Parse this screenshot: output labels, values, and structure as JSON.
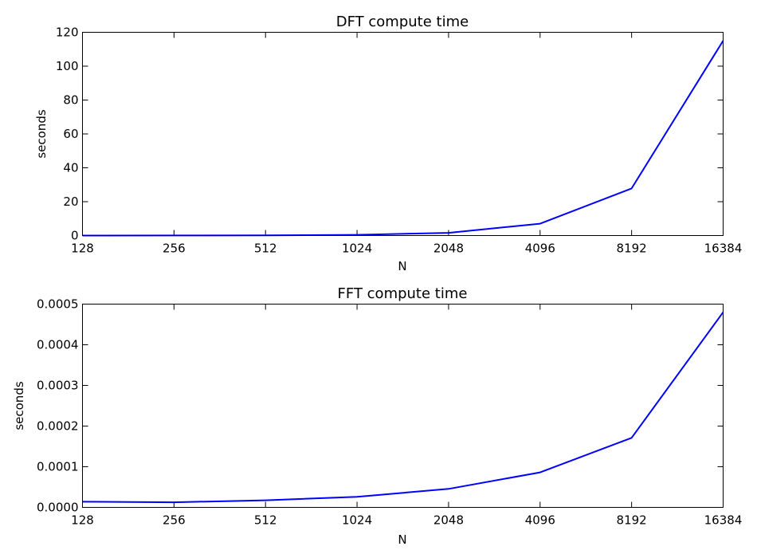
{
  "colors": {
    "series": "#0000ff",
    "axes": "#000000",
    "background": "#ffffff"
  },
  "chart_data": [
    {
      "type": "line",
      "title": "DFT compute time",
      "xlabel": "N",
      "ylabel": "seconds",
      "x_scale": "log2",
      "x_ticks": [
        "128",
        "256",
        "512",
        "1024",
        "2048",
        "4096",
        "8192",
        "16384"
      ],
      "x": [
        128,
        256,
        512,
        1024,
        2048,
        4096,
        8192,
        16384
      ],
      "y_ticks": [
        "0",
        "20",
        "40",
        "60",
        "80",
        "100",
        "120"
      ],
      "ylim": [
        0,
        120
      ],
      "grid": false,
      "series": [
        {
          "values": [
            0.02,
            0.03,
            0.1,
            0.4,
            1.6,
            7.0,
            27.8,
            115.0
          ]
        }
      ]
    },
    {
      "type": "line",
      "title": "FFT compute time",
      "xlabel": "N",
      "ylabel": "seconds",
      "x_scale": "log2",
      "x_ticks": [
        "128",
        "256",
        "512",
        "1024",
        "2048",
        "4096",
        "8192",
        "16384"
      ],
      "x": [
        128,
        256,
        512,
        1024,
        2048,
        4096,
        8192,
        16384
      ],
      "y_ticks": [
        "0.0000",
        "0.0001",
        "0.0002",
        "0.0003",
        "0.0004",
        "0.0005"
      ],
      "ylim": [
        0,
        0.0005
      ],
      "grid": false,
      "series": [
        {
          "values": [
            1.4e-05,
            1.25e-05,
            1.75e-05,
            2.6e-05,
            4.55e-05,
            8.6e-05,
            0.000171,
            0.00048
          ]
        }
      ]
    }
  ]
}
